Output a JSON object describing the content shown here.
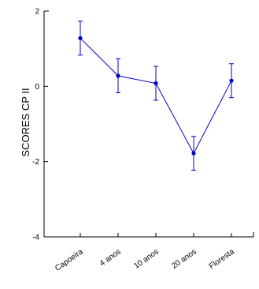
{
  "chart_data": {
    "type": "line",
    "title": "",
    "xlabel": "",
    "ylabel": "SCORES CP II",
    "categories": [
      "Capoeira",
      "4 anos",
      "10 anos",
      "20 anos",
      "Floresta"
    ],
    "series": [
      {
        "values": [
          1.28,
          0.28,
          0.08,
          -1.78,
          0.15
        ],
        "error": [
          0.45,
          0.45,
          0.45,
          0.45,
          0.45
        ]
      }
    ],
    "ylim": [
      -4,
      2
    ],
    "yticks": [
      2,
      0,
      -2,
      -4
    ],
    "ytick_labels": [
      "2",
      "0",
      "-2",
      "-4"
    ],
    "grid": false,
    "legend": "none",
    "colors": {
      "series": "#0000cc",
      "axes": "#000000"
    }
  }
}
